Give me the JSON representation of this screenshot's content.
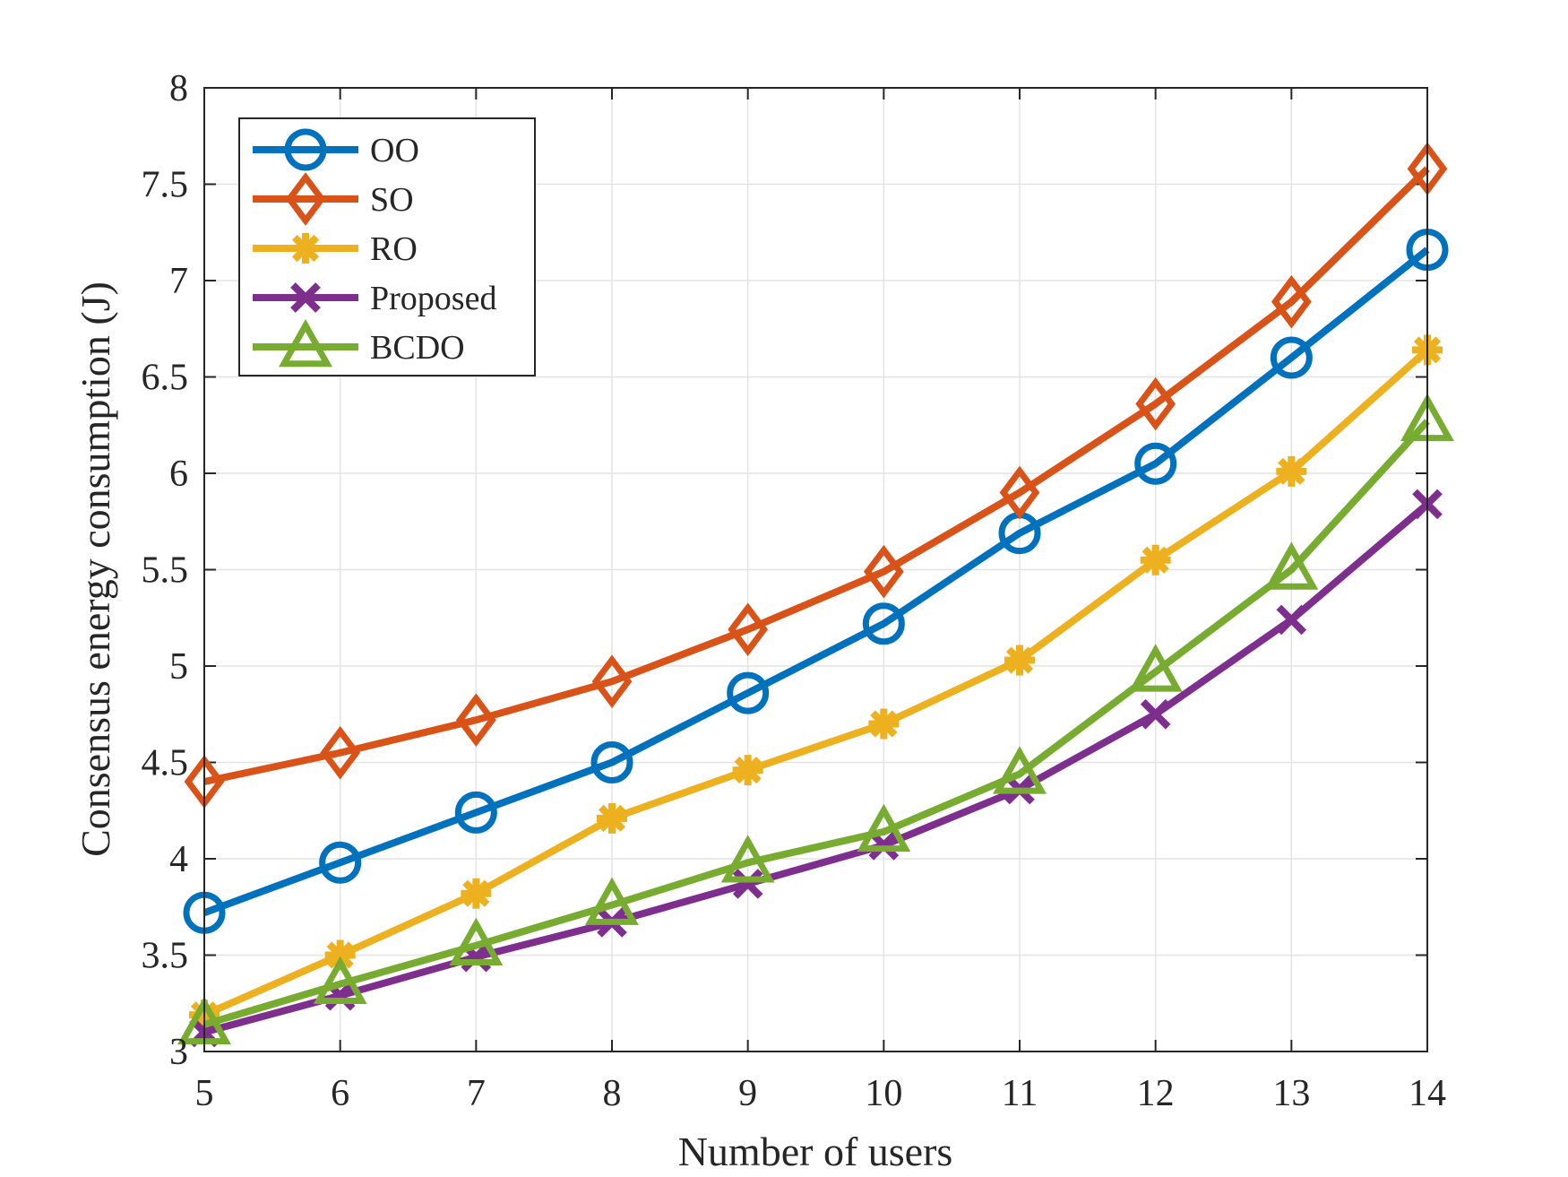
{
  "chart_data": {
    "type": "line",
    "title": "",
    "xlabel": "Number of users",
    "ylabel": "Consensus energy consumption (J)",
    "x": [
      5,
      6,
      7,
      8,
      9,
      10,
      11,
      12,
      13,
      14
    ],
    "xlim": [
      5,
      14
    ],
    "ylim": [
      3,
      8
    ],
    "xticks": [
      "5",
      "6",
      "7",
      "8",
      "9",
      "10",
      "11",
      "12",
      "13",
      "14"
    ],
    "yticks": [
      "3",
      "3.5",
      "4",
      "4.5",
      "5",
      "5.5",
      "6",
      "6.5",
      "7",
      "7.5",
      "8"
    ],
    "ytick_values": [
      3,
      3.5,
      4,
      4.5,
      5,
      5.5,
      6,
      6.5,
      7,
      7.5,
      8
    ],
    "grid": true,
    "legend_position": "top-left",
    "series": [
      {
        "name": "OO",
        "color": "#0072BD",
        "marker": "circle",
        "values": [
          3.72,
          3.98,
          4.24,
          4.5,
          4.86,
          5.22,
          5.69,
          6.05,
          6.6,
          7.16
        ]
      },
      {
        "name": "SO",
        "color": "#D95319",
        "marker": "diamond",
        "values": [
          4.4,
          4.55,
          4.72,
          4.92,
          5.19,
          5.49,
          5.9,
          6.36,
          6.89,
          7.58
        ]
      },
      {
        "name": "RO",
        "color": "#EDB120",
        "marker": "asterisk",
        "values": [
          3.19,
          3.5,
          3.82,
          4.21,
          4.46,
          4.7,
          5.03,
          5.55,
          6.01,
          6.64
        ]
      },
      {
        "name": "Proposed",
        "color": "#7E2F8E",
        "marker": "x",
        "values": [
          3.1,
          3.29,
          3.49,
          3.67,
          3.87,
          4.07,
          4.36,
          4.75,
          5.24,
          5.84
        ]
      },
      {
        "name": "BCDO",
        "color": "#77AC30",
        "marker": "triangle",
        "values": [
          3.14,
          3.35,
          3.55,
          3.76,
          3.98,
          4.14,
          4.44,
          4.97,
          5.5,
          6.27
        ]
      }
    ]
  }
}
